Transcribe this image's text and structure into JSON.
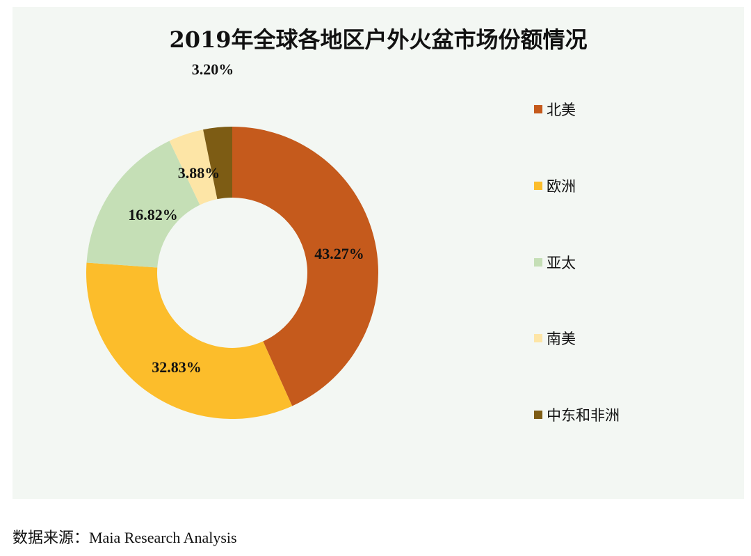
{
  "chart_data": {
    "type": "pie",
    "subtype": "donut",
    "title": "2019年全球各地区户外火盆市场份额情况",
    "categories": [
      "北美",
      "欧洲",
      "亚太",
      "南美",
      "中东和非洲"
    ],
    "values": [
      43.27,
      32.83,
      16.82,
      3.88,
      3.2
    ],
    "value_labels": [
      "43.27%",
      "32.83%",
      "16.82%",
      "3.88%",
      "3.20%"
    ],
    "colors": [
      "#c55a1c",
      "#fcbd2b",
      "#c5dfb6",
      "#fde5a6",
      "#7d5c14"
    ],
    "legend_position": "right"
  },
  "source": "数据来源：Maia Research Analysis"
}
